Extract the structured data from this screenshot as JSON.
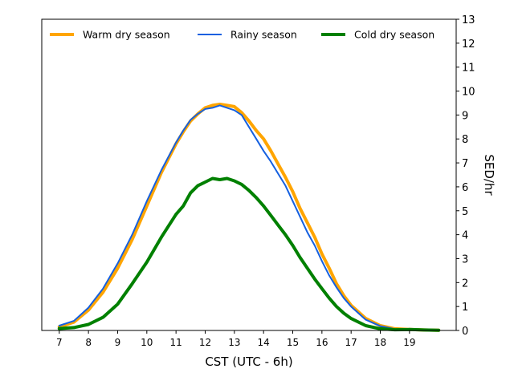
{
  "chart_data": {
    "type": "line",
    "xlabel": "CST (UTC - 6h)",
    "ylabel": "SED/hr",
    "xlim": [
      6.4,
      20.6
    ],
    "ylim": [
      0,
      13
    ],
    "x_ticks": [
      7,
      8,
      9,
      10,
      11,
      12,
      13,
      14,
      15,
      16,
      17,
      18,
      19
    ],
    "y_ticks": [
      0,
      1,
      2,
      3,
      4,
      5,
      6,
      7,
      8,
      9,
      10,
      11,
      12,
      13
    ],
    "y_axis_side": "right",
    "grid": false,
    "legend": {
      "placement": "top",
      "columns": 3
    },
    "series": [
      {
        "name": "Warm dry season",
        "color": "#FFA500",
        "line_width": 4,
        "x": [
          7.0,
          7.5,
          8.0,
          8.5,
          9.0,
          9.5,
          10.0,
          10.5,
          11.0,
          11.25,
          11.5,
          11.75,
          12.0,
          12.25,
          12.5,
          12.75,
          13.0,
          13.25,
          13.5,
          13.75,
          14.0,
          14.25,
          14.5,
          14.75,
          15.0,
          15.25,
          15.5,
          15.75,
          16.0,
          16.25,
          16.5,
          16.75,
          17.0,
          17.5,
          18.0,
          18.5,
          19.0,
          19.5,
          20.0
        ],
        "y": [
          0.15,
          0.35,
          0.85,
          1.6,
          2.6,
          3.8,
          5.2,
          6.6,
          7.8,
          8.3,
          8.75,
          9.05,
          9.3,
          9.4,
          9.45,
          9.4,
          9.35,
          9.1,
          8.75,
          8.35,
          8.0,
          7.5,
          6.95,
          6.4,
          5.8,
          5.1,
          4.5,
          3.9,
          3.2,
          2.6,
          1.95,
          1.45,
          1.05,
          0.5,
          0.2,
          0.07,
          0.04,
          0.02,
          0.01
        ]
      },
      {
        "name": "Rainy season",
        "color": "#1560E0",
        "line_width": 2,
        "x": [
          7.0,
          7.5,
          8.0,
          8.5,
          9.0,
          9.5,
          10.0,
          10.5,
          11.0,
          11.25,
          11.5,
          11.75,
          12.0,
          12.25,
          12.5,
          12.75,
          13.0,
          13.25,
          13.5,
          13.75,
          14.0,
          14.25,
          14.5,
          14.75,
          15.0,
          15.25,
          15.5,
          15.75,
          16.0,
          16.25,
          16.5,
          16.75,
          17.0,
          17.5,
          18.0,
          18.5,
          19.0,
          19.5,
          20.0
        ],
        "y": [
          0.2,
          0.4,
          0.95,
          1.75,
          2.8,
          4.0,
          5.4,
          6.7,
          7.85,
          8.35,
          8.8,
          9.05,
          9.25,
          9.3,
          9.4,
          9.3,
          9.2,
          9.0,
          8.5,
          8.0,
          7.5,
          7.05,
          6.55,
          6.05,
          5.4,
          4.75,
          4.1,
          3.55,
          2.9,
          2.3,
          1.8,
          1.35,
          1.0,
          0.45,
          0.18,
          0.06,
          0.03,
          0.02,
          0.01
        ]
      },
      {
        "name": "Cold dry season",
        "color": "#008000",
        "line_width": 4,
        "x": [
          7.0,
          7.5,
          8.0,
          8.5,
          9.0,
          9.5,
          10.0,
          10.5,
          11.0,
          11.25,
          11.5,
          11.75,
          12.0,
          12.25,
          12.5,
          12.75,
          13.0,
          13.25,
          13.5,
          13.75,
          14.0,
          14.25,
          14.5,
          14.75,
          15.0,
          15.25,
          15.5,
          15.75,
          16.0,
          16.25,
          16.5,
          16.75,
          17.0,
          17.5,
          18.0,
          18.5,
          19.0,
          19.5,
          20.0
        ],
        "y": [
          0.08,
          0.12,
          0.25,
          0.55,
          1.1,
          1.95,
          2.85,
          3.9,
          4.85,
          5.2,
          5.75,
          6.05,
          6.2,
          6.35,
          6.3,
          6.35,
          6.25,
          6.1,
          5.85,
          5.55,
          5.2,
          4.8,
          4.4,
          4.0,
          3.55,
          3.05,
          2.6,
          2.15,
          1.75,
          1.35,
          1.0,
          0.72,
          0.5,
          0.2,
          0.07,
          0.03,
          0.04,
          0.02,
          0.01
        ]
      }
    ]
  }
}
